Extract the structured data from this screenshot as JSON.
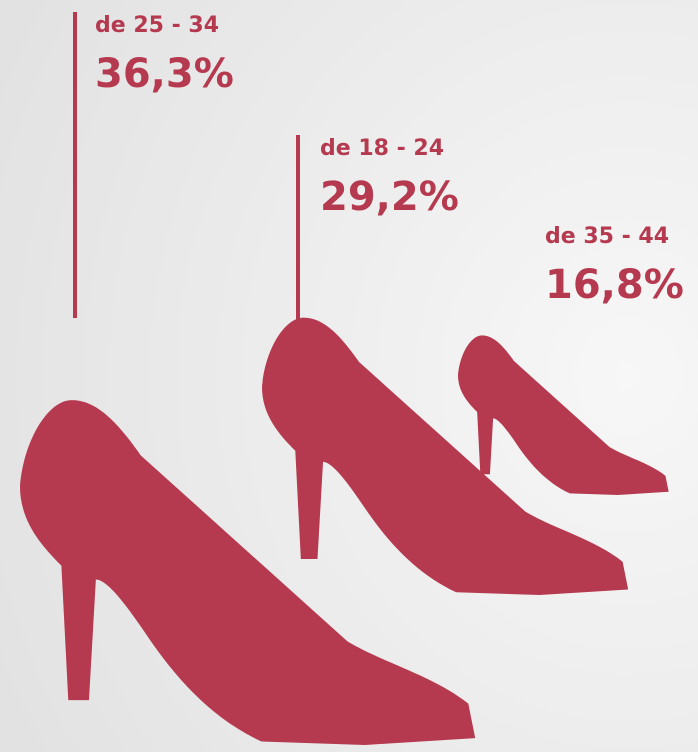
{
  "chart_data": {
    "type": "pictorial",
    "categories": [
      "de 25 - 34",
      "de 18 - 24",
      "de 35 - 44"
    ],
    "values": [
      36.3,
      29.2,
      16.8
    ],
    "value_labels": [
      "36,3%",
      "29,2%",
      "16,8%"
    ],
    "color": "#b5394f"
  }
}
